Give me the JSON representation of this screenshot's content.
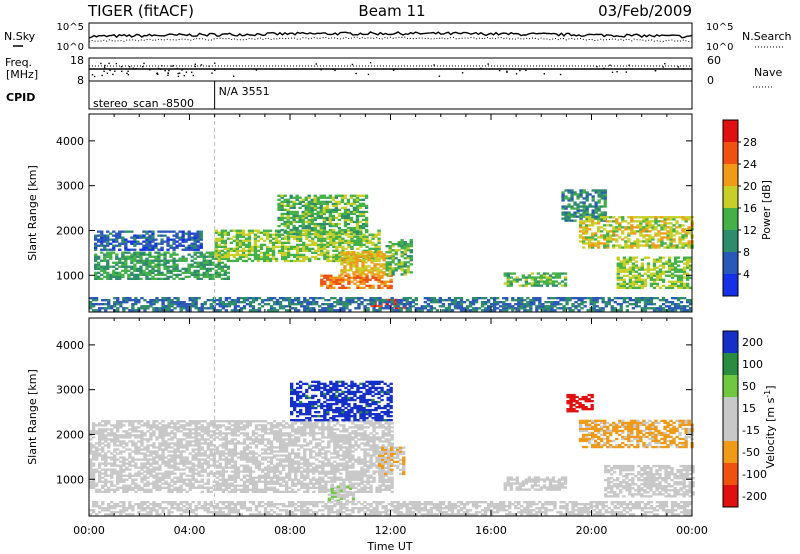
{
  "header": {
    "radar": "TIGER (fitACF)",
    "beam": "Beam 11",
    "date": "03/Feb/2009"
  },
  "top_panels": {
    "nsky_label": "N.Sky",
    "nsky_ticks": [
      "10^5",
      "10^0"
    ],
    "nsearch_label": "N.Search",
    "nsearch_ticks": [
      "10^5",
      "10^0"
    ],
    "freq_label_1": "Freq.",
    "freq_label_2": "[MHz]",
    "freq_ticks": [
      "18",
      "8"
    ],
    "nave_label": "Nave",
    "nave_ticks": [
      "60",
      "0"
    ],
    "cpid_label": "CPID",
    "cpid_segments": [
      {
        "label": "stereo_scan -8500",
        "start_hour": 0,
        "end_hour": 5
      },
      {
        "label": "N/A 3551",
        "start_hour": 5,
        "end_hour": 24
      }
    ]
  },
  "chart_data": [
    {
      "type": "heatmap",
      "title": "",
      "xlabel": "",
      "ylabel": "Slant Range [km]",
      "xlim_hours": [
        0,
        24
      ],
      "ylim": [
        180,
        4600
      ],
      "yticks": [
        "1000",
        "2000",
        "3000",
        "4000"
      ],
      "colorbar_label": "Power [dB]",
      "colorbar_ticks": [
        "4",
        "8",
        "12",
        "16",
        "20",
        "24",
        "28"
      ],
      "colorbar_min": 0,
      "colorbar_max": 32,
      "colors": [
        "#1530e6",
        "#2a58b8",
        "#2e8c6c",
        "#44b048",
        "#c8d028",
        "#f09a18",
        "#f05010",
        "#e01010"
      ],
      "features": [
        {
          "t_start": 0.2,
          "t_end": 5.5,
          "range_start": 900,
          "range_end": 1500,
          "level": 12
        },
        {
          "t_start": 0.2,
          "t_end": 4.5,
          "range_start": 1550,
          "range_end": 2000,
          "level": 6
        },
        {
          "t_start": 5.0,
          "t_end": 11.5,
          "range_start": 1300,
          "range_end": 2000,
          "level": 16
        },
        {
          "t_start": 7.5,
          "t_end": 11.0,
          "range_start": 1900,
          "range_end": 2800,
          "level": 14
        },
        {
          "t_start": 9.2,
          "t_end": 12.0,
          "range_start": 700,
          "range_end": 1000,
          "level": 24
        },
        {
          "t_start": 10.0,
          "t_end": 12.0,
          "range_start": 1000,
          "range_end": 1500,
          "level": 20
        },
        {
          "t_start": 11.2,
          "t_end": 12.6,
          "range_start": 250,
          "range_end": 450,
          "level": 28
        },
        {
          "t_start": 11.8,
          "t_end": 12.8,
          "range_start": 1000,
          "range_end": 1800,
          "level": 14
        },
        {
          "t_start": 16.5,
          "t_end": 19.0,
          "range_start": 750,
          "range_end": 1050,
          "level": 14
        },
        {
          "t_start": 18.8,
          "t_end": 20.5,
          "range_start": 2200,
          "range_end": 2900,
          "level": 10
        },
        {
          "t_start": 19.5,
          "t_end": 24.0,
          "range_start": 1600,
          "range_end": 2300,
          "level": 18
        },
        {
          "t_start": 21.0,
          "t_end": 24.0,
          "range_start": 700,
          "range_end": 1400,
          "level": 16
        },
        {
          "t_start": 0.0,
          "t_end": 24.0,
          "range_start": 200,
          "range_end": 500,
          "level": 8
        }
      ]
    },
    {
      "type": "heatmap",
      "title": "",
      "xlabel": "Time UT",
      "ylabel": "Slant Range [km]",
      "xlim_hours": [
        0,
        24
      ],
      "ylim": [
        180,
        4600
      ],
      "xticks": [
        "00:00",
        "04:00",
        "08:00",
        "12:00",
        "16:00",
        "20:00",
        "00:00"
      ],
      "yticks": [
        "1000",
        "2000",
        "3000",
        "4000"
      ],
      "colorbar_label": "Velocity [m s^-1]",
      "colorbar_ticks": [
        "200",
        "100",
        "50",
        "15",
        "-15",
        "-50",
        "-100",
        "-200"
      ],
      "colorbar_min": -250,
      "colorbar_max": 250,
      "colors": [
        "#e01010",
        "#f05010",
        "#f09a18",
        "#c8c8c8",
        "#c8c8c8",
        "#70c840",
        "#2a8c40",
        "#1530c8"
      ],
      "features": [
        {
          "t_start": 0.0,
          "t_end": 12.0,
          "range_start": 700,
          "range_end": 2300,
          "velocity": 0
        },
        {
          "t_start": 8.0,
          "t_end": 12.0,
          "range_start": 2300,
          "range_end": 3200,
          "velocity": 200
        },
        {
          "t_start": 9.5,
          "t_end": 10.5,
          "range_start": 500,
          "range_end": 900,
          "velocity": 60
        },
        {
          "t_start": 11.5,
          "t_end": 12.5,
          "range_start": 1100,
          "range_end": 1700,
          "velocity": -60
        },
        {
          "t_start": 16.5,
          "t_end": 19.0,
          "range_start": 750,
          "range_end": 1050,
          "velocity": 0
        },
        {
          "t_start": 19.0,
          "t_end": 20.0,
          "range_start": 2500,
          "range_end": 2900,
          "velocity": -220
        },
        {
          "t_start": 19.5,
          "t_end": 24.0,
          "range_start": 1700,
          "range_end": 2300,
          "velocity": -70
        },
        {
          "t_start": 20.5,
          "t_end": 24.0,
          "range_start": 600,
          "range_end": 1300,
          "velocity": 0
        },
        {
          "t_start": 0.0,
          "t_end": 24.0,
          "range_start": 200,
          "range_end": 500,
          "velocity": -40
        }
      ]
    }
  ]
}
